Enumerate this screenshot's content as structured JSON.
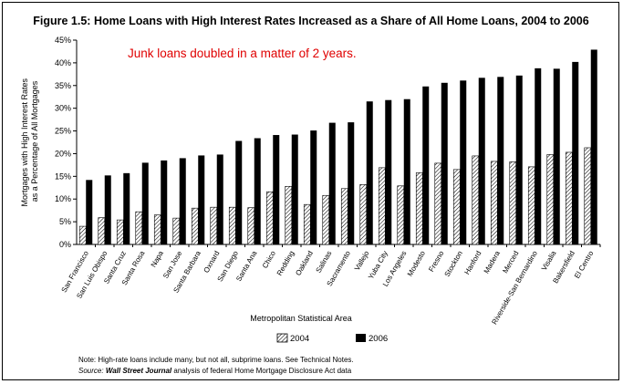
{
  "chart_data": {
    "type": "bar",
    "title": "Figure 1.5: Home Loans with High Interest Rates Increased as a Share of All Home Loans, 2004 to 2006",
    "annotation": "Junk loans doubled in a matter of 2 years.",
    "xlabel": "Metropolitan Statistical Area",
    "ylabel": "Mortgages with High Interest Rates as a Percentage of All Mortgages",
    "ylim": [
      0,
      45
    ],
    "yticks": [
      "0%",
      "5%",
      "10%",
      "15%",
      "20%",
      "25%",
      "30%",
      "35%",
      "40%",
      "45%"
    ],
    "grid": false,
    "legend_position": "bottom-center",
    "categories": [
      "San Francisco",
      "San Luis Obispo",
      "Santa Cruz",
      "Santa Rosa",
      "Napa",
      "San Jose",
      "Santa Barbara",
      "Oxnard",
      "San Diego",
      "Santa Ana",
      "Chico",
      "Redding",
      "Oakland",
      "Salinas",
      "Sacramento",
      "Vallejo",
      "Yuba City",
      "Los Angeles",
      "Modesto",
      "Fresno",
      "Stockton",
      "Hanford",
      "Madera",
      "Merced",
      "Riverside-San Bernardino",
      "Visalia",
      "Bakersfield",
      "El Centro"
    ],
    "series": [
      {
        "name": "2004",
        "pattern": "hatched",
        "color": "#ffffff",
        "values": [
          4.0,
          5.9,
          5.4,
          7.2,
          6.5,
          5.8,
          8.0,
          8.2,
          8.2,
          8.1,
          11.6,
          12.8,
          8.8,
          10.8,
          12.3,
          13.2,
          16.9,
          12.9,
          15.8,
          17.9,
          16.5,
          19.5,
          18.3,
          18.2,
          17.1,
          19.8,
          20.3,
          21.3
        ]
      },
      {
        "name": "2006",
        "pattern": "solid",
        "color": "#000000",
        "values": [
          14.2,
          15.2,
          15.7,
          18.0,
          18.5,
          19.0,
          19.6,
          19.8,
          22.8,
          23.4,
          24.1,
          24.2,
          25.1,
          26.8,
          26.9,
          31.5,
          31.8,
          32.0,
          34.8,
          35.6,
          36.1,
          36.7,
          36.9,
          37.2,
          38.8,
          38.7,
          40.2,
          42.9
        ]
      }
    ],
    "notes": {
      "note": "Note: High-rate loans include many, but not all, subprime loans. See Technical Notes.",
      "source_prefix": "Source:",
      "source_publication": "Wall Street Journal",
      "source_rest": "analysis of federal Home Mortgage Disclosure Act data"
    }
  }
}
